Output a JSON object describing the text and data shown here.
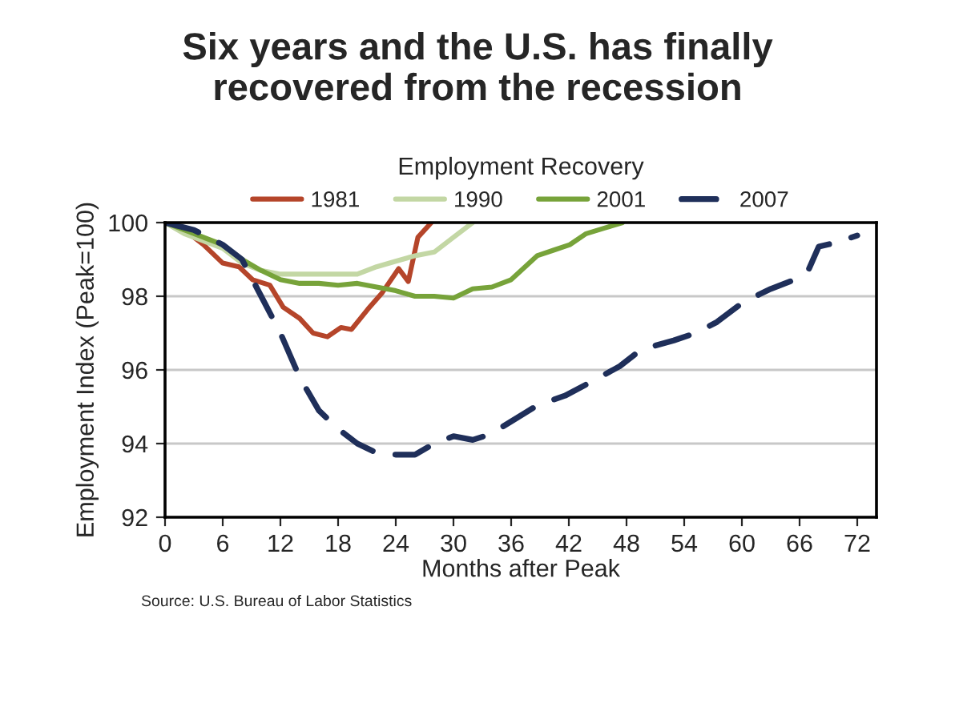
{
  "chart_data": {
    "type": "line",
    "title": "Six years and the U.S. has finally\nrecovered from the recession",
    "legend_title": "Employment Recovery",
    "xlabel": "Months after Peak",
    "ylabel": "Employment Index (Peak=100)",
    "series": [
      {
        "name": "1981",
        "color": "#b5452a",
        "line_style": "solid",
        "x": [
          0,
          2,
          4,
          6,
          7.7,
          9.1,
          10.9,
          12.3,
          14,
          15.4,
          16.9,
          18.3,
          19.4,
          21.1,
          22.6,
          24.3,
          25.3,
          26.3,
          27.7
        ],
        "values": [
          100,
          99.8,
          99.4,
          98.9,
          98.8,
          98.45,
          98.3,
          97.7,
          97.4,
          97.0,
          96.9,
          97.15,
          97.1,
          97.65,
          98.1,
          98.75,
          98.4,
          99.6,
          100
        ]
      },
      {
        "name": "1990",
        "color": "#c3d7a4",
        "line_style": "solid",
        "x": [
          0,
          2,
          4,
          6,
          8,
          10,
          12,
          14,
          16,
          18,
          20,
          22,
          24,
          26,
          28,
          30,
          32
        ],
        "values": [
          100,
          99.7,
          99.5,
          99.3,
          98.9,
          98.7,
          98.6,
          98.6,
          98.6,
          98.6,
          98.6,
          98.8,
          98.95,
          99.1,
          99.2,
          99.6,
          100
        ]
      },
      {
        "name": "2001",
        "color": "#77a33a",
        "line_style": "solid",
        "x": [
          0,
          2,
          4,
          6,
          8,
          10,
          12,
          14,
          16,
          18,
          20,
          22,
          24,
          26,
          28,
          30,
          32,
          34,
          36,
          38.7,
          40.4,
          42.1,
          43.8,
          45.7,
          47.6
        ],
        "values": [
          100,
          99.8,
          99.6,
          99.4,
          99.0,
          98.7,
          98.45,
          98.35,
          98.35,
          98.3,
          98.35,
          98.25,
          98.15,
          98.0,
          98.0,
          97.95,
          98.2,
          98.25,
          98.45,
          99.1,
          99.25,
          99.4,
          99.7,
          99.85,
          100
        ]
      },
      {
        "name": "2007",
        "color": "#1f2f5a",
        "line_style": "dashed",
        "x": [
          0,
          3,
          6,
          8,
          10,
          12,
          14,
          16,
          18,
          20,
          22,
          24,
          26,
          28,
          30,
          32,
          33.8,
          36,
          38.8,
          41.6,
          44.5,
          47.3,
          49.5,
          52.9,
          55.2,
          57.4,
          60.2,
          63,
          65.5,
          66.9,
          68,
          69.7,
          72
        ],
        "values": [
          100,
          99.8,
          99.4,
          99.0,
          98.0,
          97.0,
          95.8,
          94.9,
          94.4,
          94.0,
          93.75,
          93.7,
          93.7,
          94.0,
          94.2,
          94.1,
          94.25,
          94.6,
          95.05,
          95.3,
          95.7,
          96.1,
          96.55,
          96.8,
          97.0,
          97.3,
          97.85,
          98.2,
          98.45,
          98.7,
          99.35,
          99.45,
          99.65
        ]
      }
    ],
    "xlim": [
      0,
      74
    ],
    "xticks": [
      0,
      6,
      12,
      18,
      24,
      30,
      36,
      42,
      48,
      54,
      60,
      66,
      72
    ],
    "ylim": [
      92,
      100
    ],
    "yticks": [
      92,
      94,
      96,
      98,
      100
    ],
    "grid": "y",
    "legend": "top",
    "marker": "none",
    "annotations": [
      "Source: U.S. Bureau of Labor Statistics"
    ]
  }
}
